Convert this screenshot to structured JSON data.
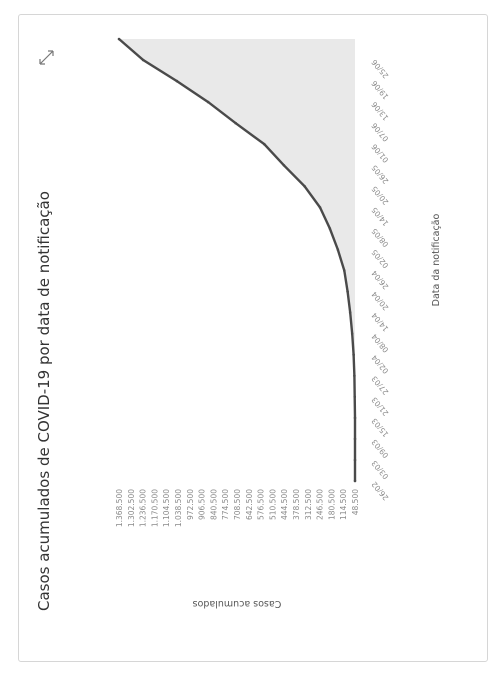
{
  "chart_data": {
    "type": "area",
    "title": "Casos acumulados de COVID-19 por data de notificação",
    "ylabel": "Casos acumulados",
    "xlabel": "Data da notificação",
    "y_ticks": [
      "48.500",
      "114.500",
      "180.500",
      "246.500",
      "312.500",
      "378.500",
      "444.500",
      "510.500",
      "576.500",
      "642.500",
      "708.500",
      "774.500",
      "840.500",
      "906.500",
      "972.500",
      "1.038.500",
      "1.104.500",
      "1.170.500",
      "1.236.500",
      "1.302.500",
      "1.368.500"
    ],
    "x_ticks": [
      "26/02",
      "03/03",
      "09/03",
      "15/03",
      "21/03",
      "27/03",
      "02/04",
      "08/04",
      "14/04",
      "20/04",
      "26/04",
      "02/05",
      "08/05",
      "14/05",
      "20/05",
      "26/05",
      "01/06",
      "07/06",
      "13/06",
      "19/06",
      "25/06"
    ],
    "ylim": [
      0,
      1368500
    ],
    "series": [
      {
        "x": [
          "26/02",
          "03/03",
          "09/03",
          "15/03",
          "21/03",
          "27/03",
          "02/04",
          "08/04",
          "14/04",
          "20/04",
          "26/04",
          "02/05",
          "08/05",
          "14/05",
          "20/05",
          "26/05",
          "01/06",
          "07/06",
          "13/06",
          "19/06",
          "25/06",
          "27/06"
        ],
        "values": [
          1,
          2,
          25,
          200,
          1500,
          3500,
          7900,
          16000,
          28000,
          43000,
          62000,
          100000,
          146000,
          203000,
          292000,
          412000,
          526000,
          692000,
          851000,
          1033000,
          1228000,
          1368500
        ],
        "color": "#4a4a4a",
        "fill": "#e9e9e9"
      }
    ],
    "grid": false
  },
  "expand_icon": "expand-icon"
}
